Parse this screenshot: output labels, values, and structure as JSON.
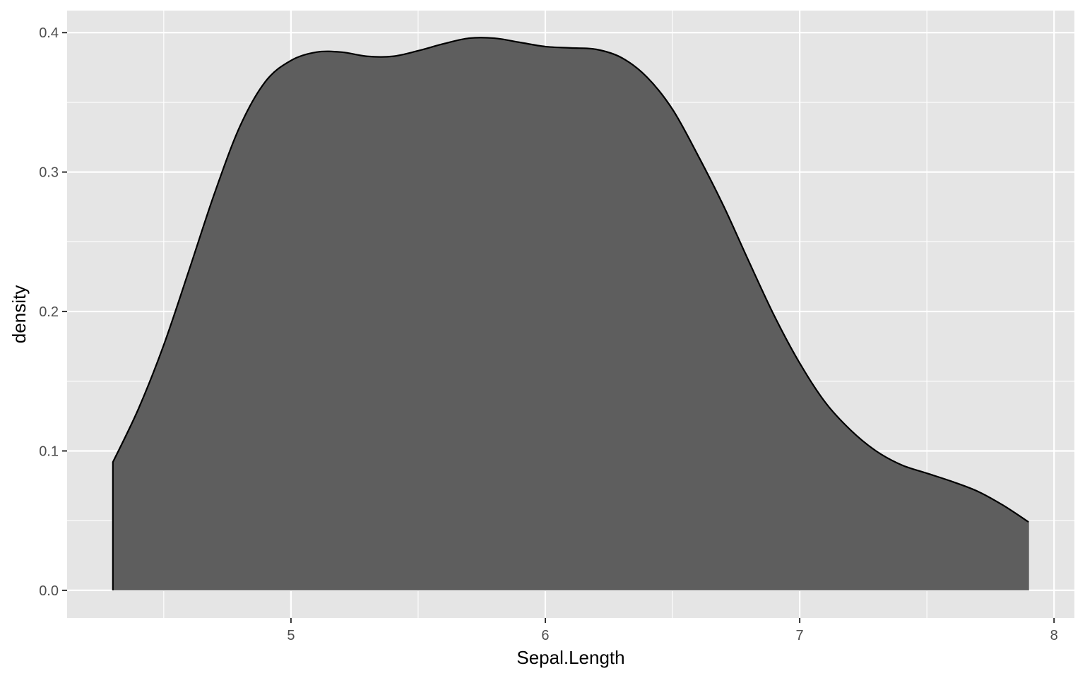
{
  "chart_data": {
    "type": "area",
    "title": "",
    "xlabel": "Sepal.Length",
    "ylabel": "density",
    "xlim": [
      4.12,
      8.08
    ],
    "ylim": [
      -0.0198,
      0.4158
    ],
    "x_ticks": [
      5,
      6,
      7,
      8
    ],
    "x_tick_labels": [
      "5",
      "6",
      "7",
      "8"
    ],
    "x_minor_ticks": [
      4.5,
      5.5,
      6.5,
      7.5
    ],
    "y_ticks": [
      0.0,
      0.1,
      0.2,
      0.3,
      0.4
    ],
    "y_tick_labels": [
      "0.0",
      "0.1",
      "0.2",
      "0.3",
      "0.4"
    ],
    "y_minor_ticks": [
      0.05,
      0.15,
      0.25,
      0.35
    ],
    "grid": true,
    "fill_color": "#595959",
    "line_color": "#000000",
    "panel_color": "#e5e5e5",
    "grid_color": "#ffffff",
    "series": [
      {
        "x": [
          4.3,
          4.4,
          4.5,
          4.6,
          4.7,
          4.8,
          4.9,
          5.0,
          5.1,
          5.2,
          5.3,
          5.4,
          5.5,
          5.6,
          5.7,
          5.8,
          5.9,
          6.0,
          6.1,
          6.2,
          6.3,
          6.4,
          6.5,
          6.6,
          6.7,
          6.8,
          6.9,
          7.0,
          7.1,
          7.2,
          7.3,
          7.4,
          7.5,
          7.6,
          7.7,
          7.8,
          7.9
        ],
        "values": [
          0.092,
          0.13,
          0.176,
          0.23,
          0.285,
          0.333,
          0.365,
          0.38,
          0.386,
          0.386,
          0.383,
          0.383,
          0.387,
          0.392,
          0.396,
          0.396,
          0.393,
          0.39,
          0.389,
          0.388,
          0.382,
          0.368,
          0.345,
          0.312,
          0.276,
          0.236,
          0.197,
          0.163,
          0.135,
          0.115,
          0.1,
          0.09,
          0.084,
          0.078,
          0.071,
          0.061,
          0.049
        ]
      }
    ]
  }
}
